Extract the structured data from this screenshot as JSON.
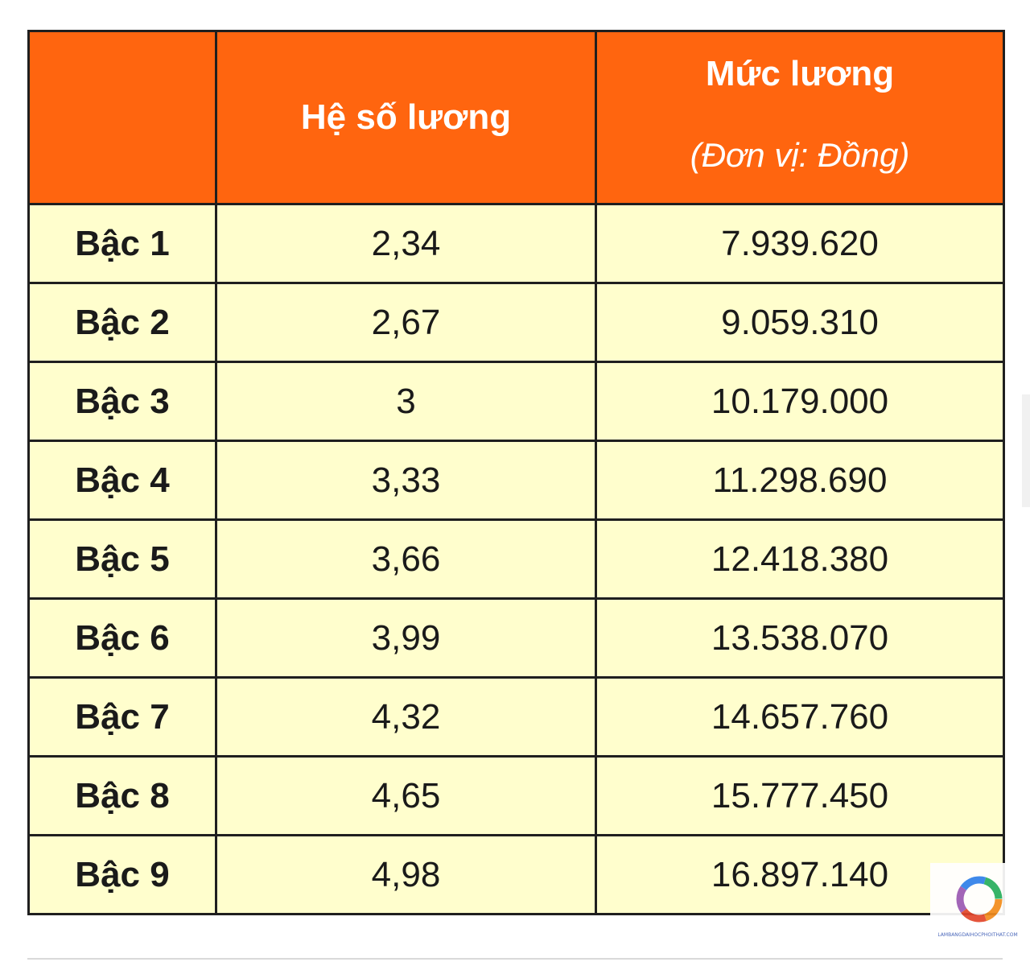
{
  "table": {
    "header": {
      "blank": "",
      "coefficient": "Hệ số lương",
      "salary_title": "Mức lương",
      "salary_unit": "(Đơn vị: Đồng)"
    },
    "rows": [
      {
        "grade": "Bậc 1",
        "coefficient": "2,34",
        "salary": "7.939.620"
      },
      {
        "grade": "Bậc 2",
        "coefficient": "2,67",
        "salary": "9.059.310"
      },
      {
        "grade": "Bậc 3",
        "coefficient": "3",
        "salary": "10.179.000"
      },
      {
        "grade": "Bậc 4",
        "coefficient": "3,33",
        "salary": "11.298.690"
      },
      {
        "grade": "Bậc 5",
        "coefficient": "3,66",
        "salary": "12.418.380"
      },
      {
        "grade": "Bậc 6",
        "coefficient": "3,99",
        "salary": "13.538.070"
      },
      {
        "grade": "Bậc 7",
        "coefficient": "4,32",
        "salary": "14.657.760"
      },
      {
        "grade": "Bậc 8",
        "coefficient": "4,65",
        "salary": "15.777.450"
      },
      {
        "grade": "Bậc 9",
        "coefficient": "4,98",
        "salary": "16.897.140"
      }
    ]
  },
  "watermark": {
    "text": "LAMBANGDAIHOCPHOITHAT.COM",
    "icon": "circular-logo-icon"
  },
  "colors": {
    "header_bg": "#ff650f",
    "cell_bg": "#fffecd",
    "border": "#1f1f1f"
  }
}
